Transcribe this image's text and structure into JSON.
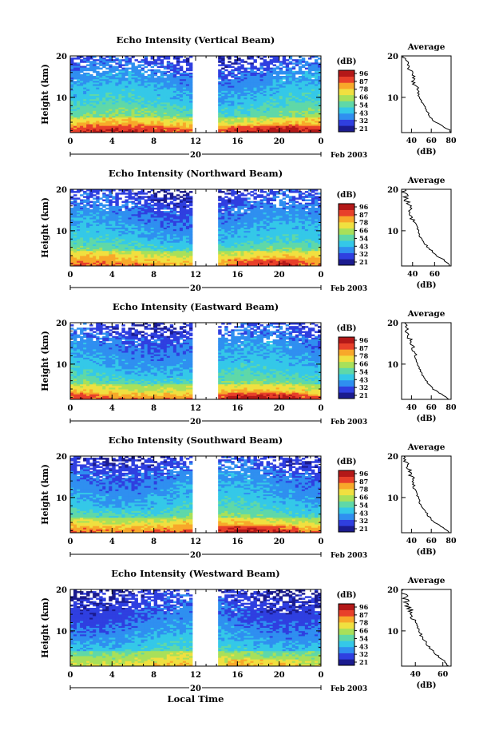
{
  "figure": {
    "xlabel": "Local Time",
    "date_label": "Feb 2003",
    "colorbar_unit": "(dB)",
    "colorbar_ticks": [
      "96",
      "87",
      "78",
      "66",
      "54",
      "43",
      "32",
      "21"
    ],
    "avg_title": "Average",
    "avg_xlabel": "(dB)"
  },
  "chart_data": [
    {
      "type": "heatmap",
      "title": "Echo Intensity (Vertical Beam)",
      "ylabel": "Height (km)",
      "xlabel": "Local Time",
      "x_ticks": [
        "0",
        "4",
        "8",
        "12",
        "16",
        "20",
        "0"
      ],
      "x_day_label": "20",
      "y_ticks": [
        10,
        20
      ],
      "ylim": [
        1.5,
        20
      ],
      "xlim": [
        0,
        24
      ],
      "color_scale": {
        "min": 21,
        "max": 96,
        "unit": "dB",
        "colors": [
          "#1b1b8f",
          "#2f3fe0",
          "#2f8ff0",
          "#34c8e8",
          "#5fd8a8",
          "#a8e05a",
          "#f0e040",
          "#f8a82a",
          "#e8402a",
          "#b41818"
        ]
      },
      "data_gap_hours": [
        11.7,
        14.3
      ],
      "average_profile": {
        "title": "Average",
        "xlabel": "(dB)",
        "x_ticks": [
          40,
          60,
          80
        ],
        "xlim": [
          30,
          80
        ],
        "ylim": [
          1.5,
          20
        ],
        "height_km": [
          1.5,
          2,
          3,
          4,
          5,
          6,
          7,
          8,
          9,
          10,
          11,
          12,
          13,
          14,
          15,
          16,
          17,
          18,
          19,
          20
        ],
        "db": [
          80,
          79,
          72,
          64,
          60,
          57,
          55,
          53,
          50,
          48,
          47,
          46,
          44,
          42,
          41,
          40,
          37,
          35,
          34,
          33
        ]
      }
    },
    {
      "type": "heatmap",
      "title": "Echo Intensity (Northward Beam)",
      "ylabel": "Height (km)",
      "xlabel": "Local Time",
      "x_ticks": [
        "0",
        "4",
        "8",
        "12",
        "16",
        "20",
        "0"
      ],
      "x_day_label": "20",
      "y_ticks": [
        10,
        20
      ],
      "ylim": [
        1.5,
        20
      ],
      "xlim": [
        0,
        24
      ],
      "color_scale": {
        "min": 21,
        "max": 96,
        "unit": "dB",
        "colors": [
          "#1b1b8f",
          "#2f3fe0",
          "#2f8ff0",
          "#34c8e8",
          "#5fd8a8",
          "#a8e05a",
          "#f0e040",
          "#f8a82a",
          "#e8402a",
          "#b41818"
        ]
      },
      "data_gap_hours": [
        11.7,
        14.3
      ],
      "average_profile": {
        "title": "Average",
        "xlabel": "(dB)",
        "x_ticks": [
          40,
          60
        ],
        "xlim": [
          30,
          75
        ],
        "ylim": [
          1.5,
          20
        ],
        "height_km": [
          1.5,
          2,
          3,
          4,
          5,
          6,
          7,
          8,
          9,
          10,
          11,
          12,
          13,
          14,
          15,
          16,
          17,
          18,
          19,
          20
        ],
        "db": [
          74,
          72,
          68,
          62,
          58,
          54,
          51,
          48,
          46,
          45,
          44,
          42,
          40,
          39,
          38,
          37,
          35,
          34,
          33,
          32
        ]
      }
    },
    {
      "type": "heatmap",
      "title": "Echo Intensity (Eastward Beam)",
      "ylabel": "Height (km)",
      "xlabel": "Local Time",
      "x_ticks": [
        "0",
        "4",
        "8",
        "12",
        "16",
        "20",
        "0"
      ],
      "x_day_label": "20",
      "y_ticks": [
        10,
        20
      ],
      "ylim": [
        1.5,
        20
      ],
      "xlim": [
        0,
        24
      ],
      "color_scale": {
        "min": 21,
        "max": 96,
        "unit": "dB",
        "colors": [
          "#1b1b8f",
          "#2f3fe0",
          "#2f8ff0",
          "#34c8e8",
          "#5fd8a8",
          "#a8e05a",
          "#f0e040",
          "#f8a82a",
          "#e8402a",
          "#b41818"
        ]
      },
      "data_gap_hours": [
        11.7,
        14.3
      ],
      "average_profile": {
        "title": "Average",
        "xlabel": "(dB)",
        "x_ticks": [
          40,
          60,
          80
        ],
        "xlim": [
          30,
          80
        ],
        "ylim": [
          1.5,
          20
        ],
        "height_km": [
          1.5,
          2,
          3,
          4,
          5,
          6,
          7,
          8,
          9,
          10,
          11,
          12,
          13,
          14,
          15,
          16,
          17,
          18,
          19,
          20
        ],
        "db": [
          78,
          76,
          68,
          62,
          58,
          55,
          52,
          50,
          48,
          46,
          45,
          44,
          42,
          41,
          40,
          39,
          36,
          35,
          34,
          33
        ]
      }
    },
    {
      "type": "heatmap",
      "title": "Echo Intensity (Southward Beam)",
      "ylabel": "Height (km)",
      "xlabel": "Local Time",
      "x_ticks": [
        "0",
        "4",
        "8",
        "12",
        "16",
        "20",
        "0"
      ],
      "x_day_label": "20",
      "y_ticks": [
        10,
        20
      ],
      "ylim": [
        1.5,
        20
      ],
      "xlim": [
        0,
        24
      ],
      "color_scale": {
        "min": 21,
        "max": 96,
        "unit": "dB",
        "colors": [
          "#1b1b8f",
          "#2f3fe0",
          "#2f8ff0",
          "#34c8e8",
          "#5fd8a8",
          "#a8e05a",
          "#f0e040",
          "#f8a82a",
          "#e8402a",
          "#b41818"
        ]
      },
      "data_gap_hours": [
        11.7,
        14.3
      ],
      "average_profile": {
        "title": "Average",
        "xlabel": "(dB)",
        "x_ticks": [
          40,
          60,
          80
        ],
        "xlim": [
          30,
          80
        ],
        "ylim": [
          1.5,
          20
        ],
        "height_km": [
          1.5,
          2,
          3,
          4,
          5,
          6,
          7,
          8,
          9,
          10,
          11,
          12,
          13,
          14,
          15,
          16,
          17,
          18,
          19,
          20
        ],
        "db": [
          78,
          76,
          70,
          63,
          59,
          56,
          53,
          50,
          48,
          47,
          45,
          44,
          43,
          42,
          40,
          39,
          37,
          35,
          34,
          33
        ]
      }
    },
    {
      "type": "heatmap",
      "title": "Echo Intensity (Westward Beam)",
      "ylabel": "Height (km)",
      "xlabel": "Local Time",
      "x_ticks": [
        "0",
        "4",
        "8",
        "12",
        "16",
        "20",
        "0"
      ],
      "x_day_label": "20",
      "y_ticks": [
        10,
        20
      ],
      "ylim": [
        1.5,
        20
      ],
      "xlim": [
        0,
        24
      ],
      "color_scale": {
        "min": 21,
        "max": 96,
        "unit": "dB",
        "colors": [
          "#1b1b8f",
          "#2f3fe0",
          "#2f8ff0",
          "#34c8e8",
          "#5fd8a8",
          "#a8e05a",
          "#f0e040",
          "#f8a82a",
          "#e8402a",
          "#b41818"
        ]
      },
      "data_gap_hours": [
        11.7,
        14.3
      ],
      "average_profile": {
        "title": "Average",
        "xlabel": "(dB)",
        "x_ticks": [
          40,
          60
        ],
        "xlim": [
          30,
          66
        ],
        "ylim": [
          1.5,
          20
        ],
        "height_km": [
          1.5,
          2,
          3,
          4,
          5,
          6,
          7,
          8,
          9,
          10,
          11,
          12,
          13,
          14,
          15,
          16,
          17,
          18,
          19,
          20
        ],
        "db": [
          64,
          63,
          60,
          56,
          53,
          50,
          48,
          46,
          44,
          43,
          41,
          40,
          38,
          37,
          36,
          35,
          34,
          33,
          32,
          31
        ]
      }
    }
  ]
}
